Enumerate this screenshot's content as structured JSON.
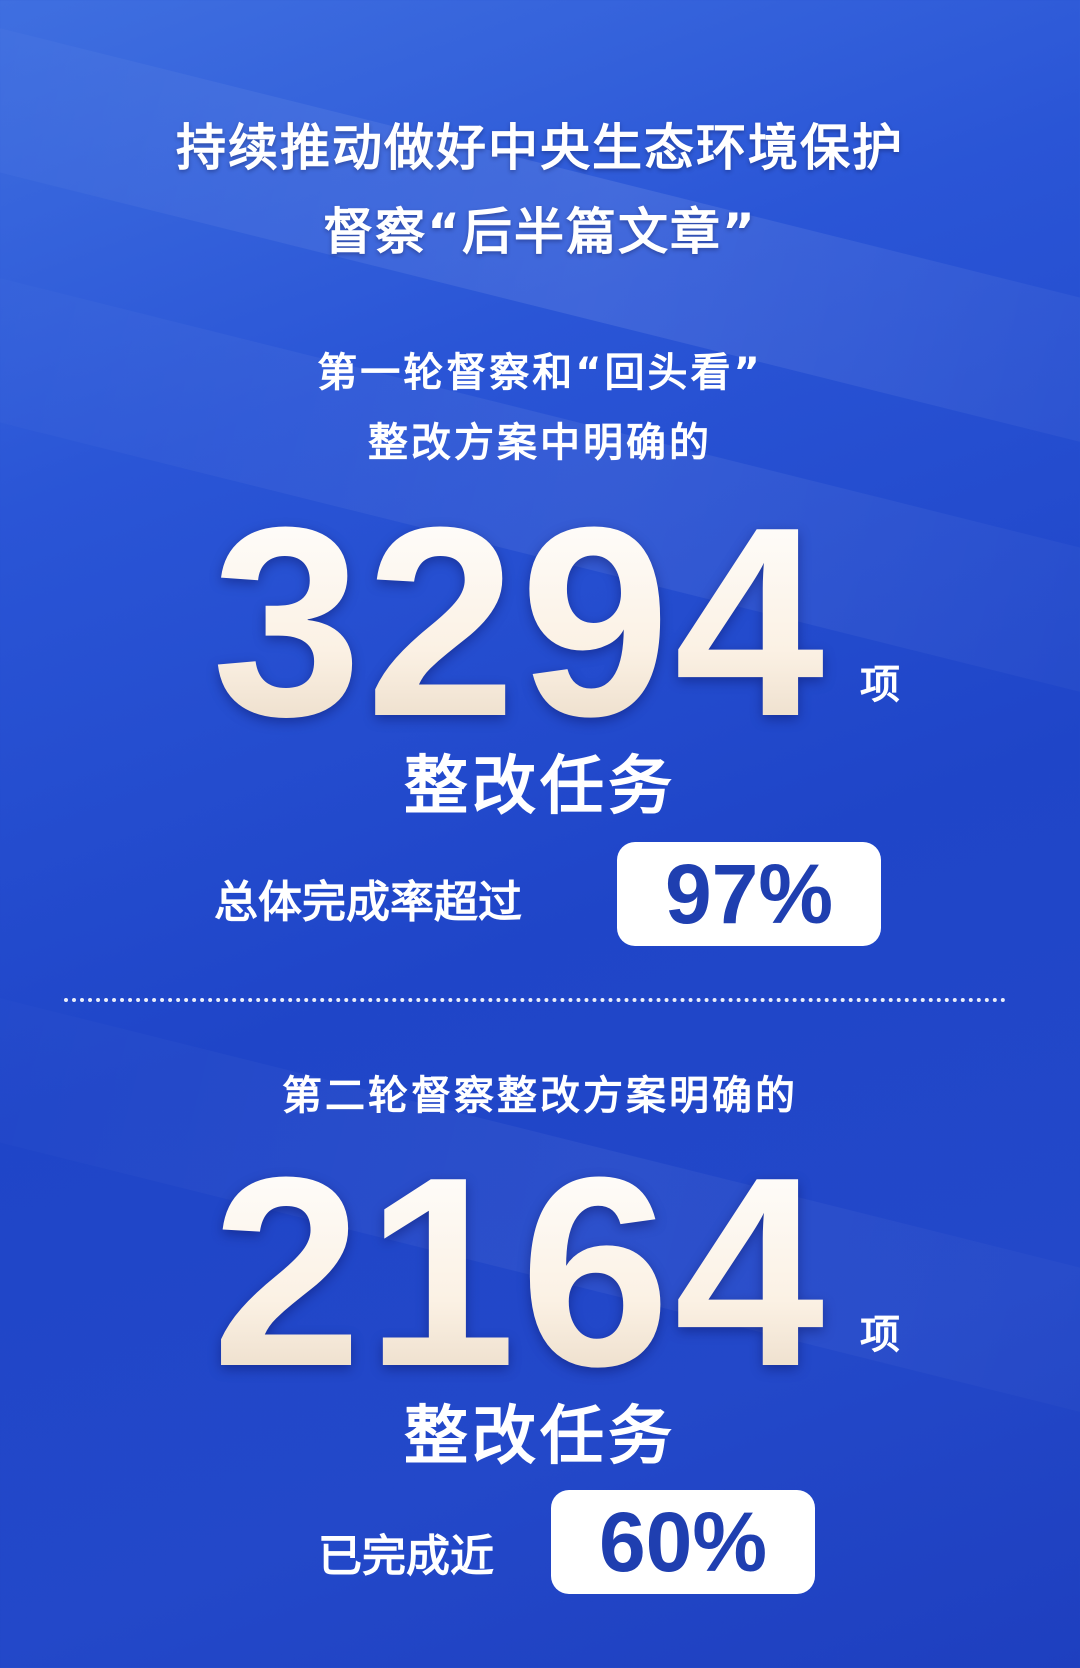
{
  "title": {
    "line1": "持续推动做好中央生态环境保护",
    "line2": "督察“后半篇文章”"
  },
  "section1": {
    "intro_line1": "第一轮督察和“回头看”",
    "intro_line2": "整改方案中明确的",
    "number": "3294",
    "unit": "项",
    "task_label": "整改任务",
    "rate_label": "总体完成率超过",
    "rate_value": "97%"
  },
  "section2": {
    "intro": "第二轮督察整改方案明确的",
    "number": "2164",
    "unit": "项",
    "task_label": "整改任务",
    "rate_label": "已完成近",
    "rate_value": "60%"
  },
  "colors": {
    "background": "#2348c9",
    "box_text": "#1f3fb0"
  }
}
